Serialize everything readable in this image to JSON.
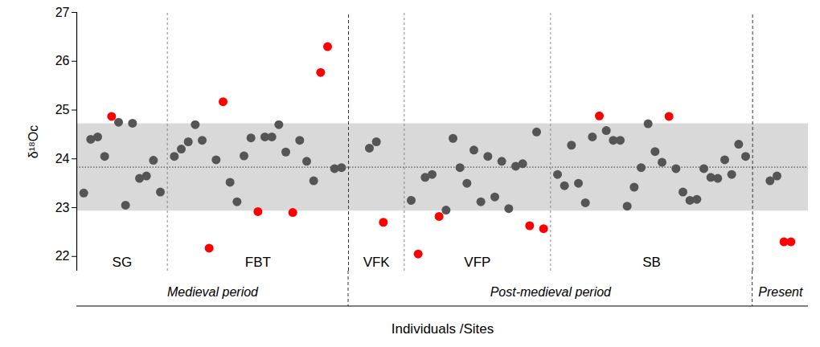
{
  "chart_data": {
    "type": "scatter",
    "ylabel": "δ¹⁸Oc",
    "xlabel": "Individuals /Sites",
    "ylim": [
      21.7,
      27
    ],
    "yticks": [
      22,
      23,
      24,
      25,
      26,
      27
    ],
    "tick_labels": "y",
    "reference_band": [
      22.93,
      24.72
    ],
    "reference_line": 23.83,
    "series": [
      {
        "name": "SG",
        "period": "Medieval period",
        "values": [
          23.3,
          24.4,
          24.45,
          24.05,
          24.87,
          24.75,
          23.05,
          24.73,
          23.6,
          23.65,
          23.97,
          23.32
        ],
        "colors": [
          "#555555",
          "#555555",
          "#555555",
          "#555555",
          "#ff0000",
          "#555555",
          "#555555",
          "#555555",
          "#555555",
          "#555555",
          "#555555",
          "#555555"
        ]
      },
      {
        "name": "FBT",
        "period": "Medieval period",
        "values": [
          24.05,
          24.2,
          24.35,
          24.7,
          24.38,
          22.17,
          23.98,
          25.17,
          23.52,
          23.12,
          24.06,
          24.43,
          22.92,
          24.45,
          24.45,
          24.7,
          24.14,
          22.9,
          24.38,
          23.95,
          23.55,
          25.77,
          26.3,
          23.8,
          23.82
        ],
        "colors": [
          "#555555",
          "#555555",
          "#555555",
          "#555555",
          "#555555",
          "#ff0000",
          "#555555",
          "#ff0000",
          "#555555",
          "#555555",
          "#555555",
          "#555555",
          "#ff0000",
          "#555555",
          "#555555",
          "#555555",
          "#555555",
          "#ff0000",
          "#555555",
          "#555555",
          "#555555",
          "#ff0000",
          "#ff0000",
          "#555555",
          "#555555"
        ]
      },
      {
        "name": "VFK",
        "period": "Post-medieval period",
        "values": [
          24.22,
          24.35,
          22.7
        ],
        "colors": [
          "#555555",
          "#555555",
          "#ff0000"
        ]
      },
      {
        "name": "VFP",
        "period": "Post-medieval period",
        "values": [
          23.15,
          22.05,
          23.62,
          23.68,
          22.82,
          22.95,
          24.42,
          23.82,
          23.5,
          24.18,
          23.12,
          24.05,
          23.22,
          23.95,
          22.98,
          23.85,
          23.9,
          22.63,
          24.55,
          22.57
        ],
        "colors": [
          "#555555",
          "#ff0000",
          "#555555",
          "#555555",
          "#ff0000",
          "#555555",
          "#555555",
          "#555555",
          "#555555",
          "#555555",
          "#555555",
          "#555555",
          "#555555",
          "#555555",
          "#555555",
          "#555555",
          "#555555",
          "#ff0000",
          "#555555",
          "#ff0000"
        ]
      },
      {
        "name": "SB",
        "period": "Post-medieval period",
        "values": [
          23.68,
          23.45,
          24.28,
          23.5,
          23.1,
          24.45,
          24.88,
          24.58,
          24.38,
          24.38,
          23.03,
          23.42,
          23.82,
          24.72,
          24.15,
          23.93,
          24.87,
          23.8,
          23.32,
          23.15,
          23.17,
          23.8,
          23.62,
          23.6,
          23.98,
          23.68,
          24.3,
          24.05
        ],
        "colors": [
          "#555555",
          "#555555",
          "#555555",
          "#555555",
          "#555555",
          "#555555",
          "#ff0000",
          "#555555",
          "#555555",
          "#555555",
          "#555555",
          "#555555",
          "#555555",
          "#555555",
          "#555555",
          "#555555",
          "#ff0000",
          "#555555",
          "#555555",
          "#555555",
          "#555555",
          "#555555",
          "#555555",
          "#555555",
          "#555555",
          "#555555",
          "#555555",
          "#555555"
        ]
      },
      {
        "name": null,
        "period": "Present",
        "values": [
          23.55,
          23.65,
          22.3,
          22.3
        ],
        "colors": [
          "#555555",
          "#555555",
          "#ff0000",
          "#ff0000"
        ]
      }
    ]
  }
}
